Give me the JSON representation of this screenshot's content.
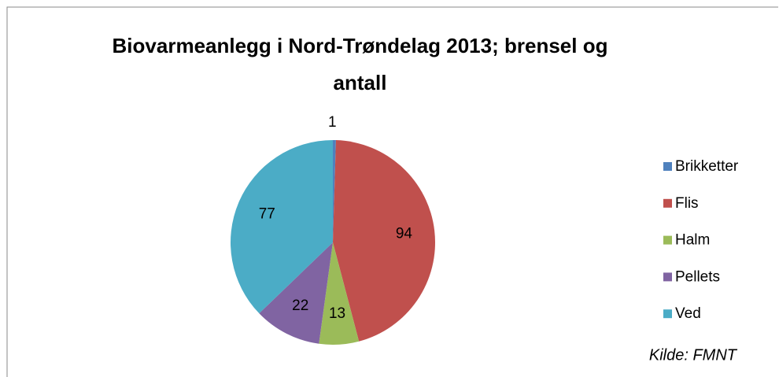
{
  "chart_data": {
    "type": "pie",
    "title": "Biovarmeanlegg i Nord-Trøndelag 2013; brensel og antall",
    "categories": [
      "Brikketter",
      "Flis",
      "Halm",
      "Pellets",
      "Ved"
    ],
    "values": [
      1,
      94,
      13,
      22,
      77
    ],
    "colors": [
      "#4f81bd",
      "#c0504d",
      "#9bbb59",
      "#8064a2",
      "#4bacc6"
    ],
    "legend": "right",
    "annotation": "Kilde: FMNT"
  }
}
